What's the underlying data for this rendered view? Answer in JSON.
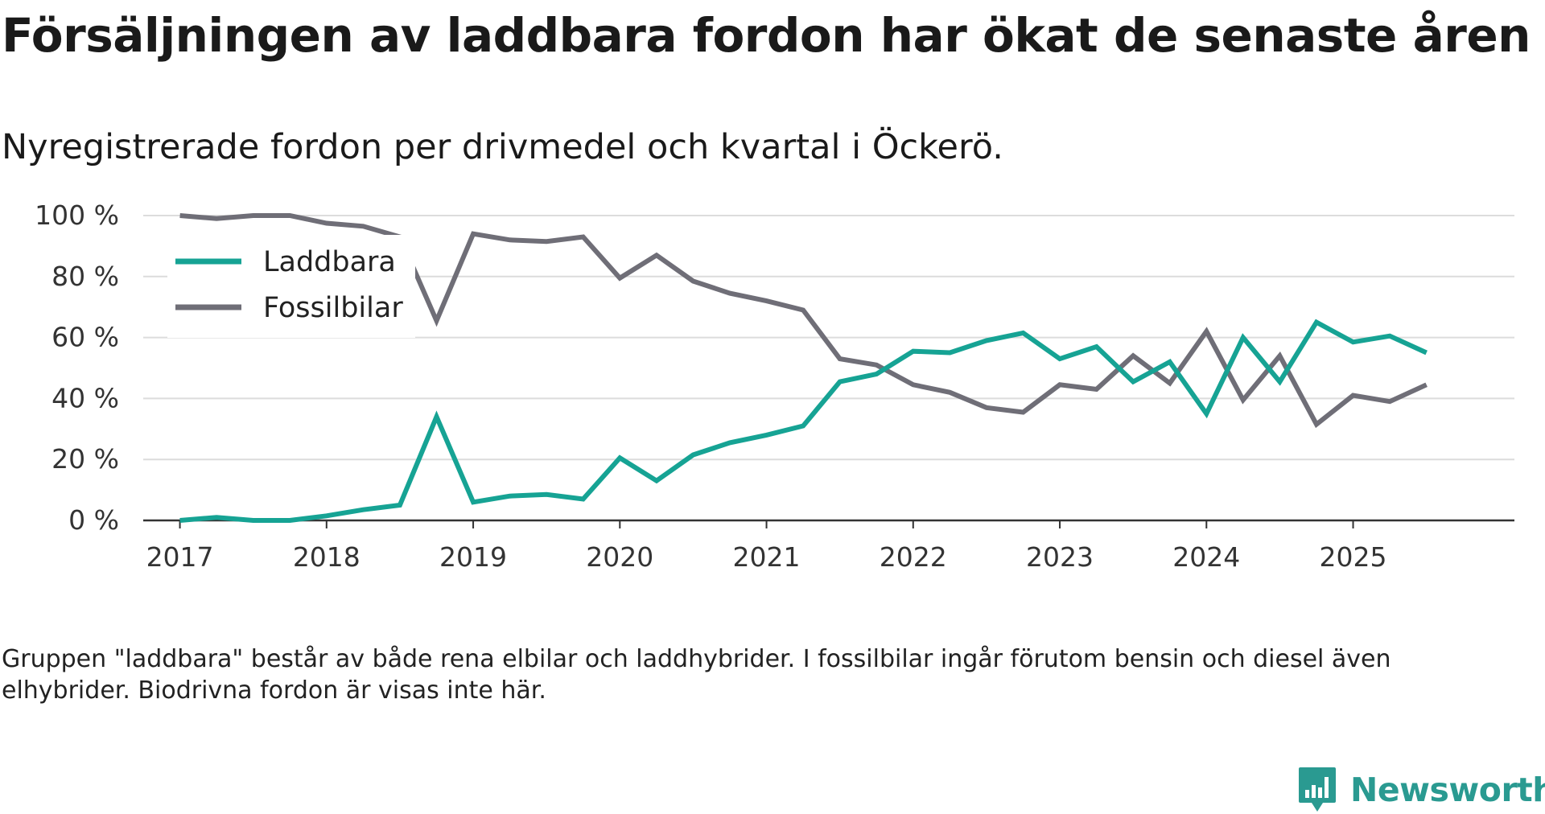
{
  "title": "Försäljningen av laddbara fordon har ökat de senaste åren",
  "subtitle": "Nyregistrerade fordon per drivmedel och kvartal i Öckerö.",
  "note": "Gruppen \"laddbara\" består av både rena elbilar och laddhybrider. I fossilbilar ingår förutom bensin och diesel även elhybrider. Biodrivna fordon är visas inte här.",
  "brand": {
    "name": "Newsworthy",
    "icon": "newsworthy-logo-icon",
    "color": "#2a9a91"
  },
  "chart_data": {
    "type": "line",
    "title": "Försäljningen av laddbara fordon har ökat de senaste åren",
    "subtitle": "Nyregistrerade fordon per drivmedel och kvartal i Öckerö.",
    "xlabel": "",
    "ylabel": "",
    "ylim": [
      0,
      100
    ],
    "xlim": [
      2016.75,
      2026.1
    ],
    "y_ticks": [
      0,
      20,
      40,
      60,
      80,
      100
    ],
    "y_tick_labels": [
      "0 %",
      "20 %",
      "40 %",
      "60 %",
      "80 %",
      "100 %"
    ],
    "x_ticks": [
      2017,
      2018,
      2019,
      2020,
      2021,
      2022,
      2023,
      2024,
      2025
    ],
    "x_tick_labels": [
      "2017",
      "2018",
      "2019",
      "2020",
      "2021",
      "2022",
      "2023",
      "2024",
      "2025"
    ],
    "grid": true,
    "legend_position": "top-left",
    "x": [
      2017.0,
      2017.25,
      2017.5,
      2017.75,
      2018.0,
      2018.25,
      2018.5,
      2018.75,
      2019.0,
      2019.25,
      2019.5,
      2019.75,
      2020.0,
      2020.25,
      2020.5,
      2020.75,
      2021.0,
      2021.25,
      2021.5,
      2021.75,
      2022.0,
      2022.25,
      2022.5,
      2022.75,
      2023.0,
      2023.25,
      2023.5,
      2023.75,
      2024.0,
      2024.25,
      2024.5,
      2024.75,
      2025.0,
      2025.25,
      2025.5
    ],
    "series": [
      {
        "name": "Laddbara",
        "color": "#16a394",
        "values": [
          0,
          1,
          0,
          0,
          1.5,
          3.5,
          5,
          34,
          6,
          8,
          8.5,
          7,
          20.5,
          13,
          21.5,
          25.5,
          28,
          31,
          45.5,
          48,
          55.5,
          55,
          59,
          61.5,
          53,
          57,
          45.5,
          52,
          35,
          60,
          45.5,
          65,
          58.5,
          60.5,
          55
        ]
      },
      {
        "name": "Fossilbilar",
        "color": "#6f6e77",
        "values": [
          100,
          99,
          100,
          100,
          97.5,
          96.5,
          93,
          65.5,
          94,
          92,
          91.5,
          93,
          79.5,
          87,
          78.5,
          74.5,
          72,
          69,
          53,
          51,
          44.5,
          42,
          37,
          35.5,
          44.5,
          43,
          54,
          45,
          62,
          39.5,
          54,
          31.5,
          41,
          39,
          44.5
        ]
      }
    ]
  }
}
